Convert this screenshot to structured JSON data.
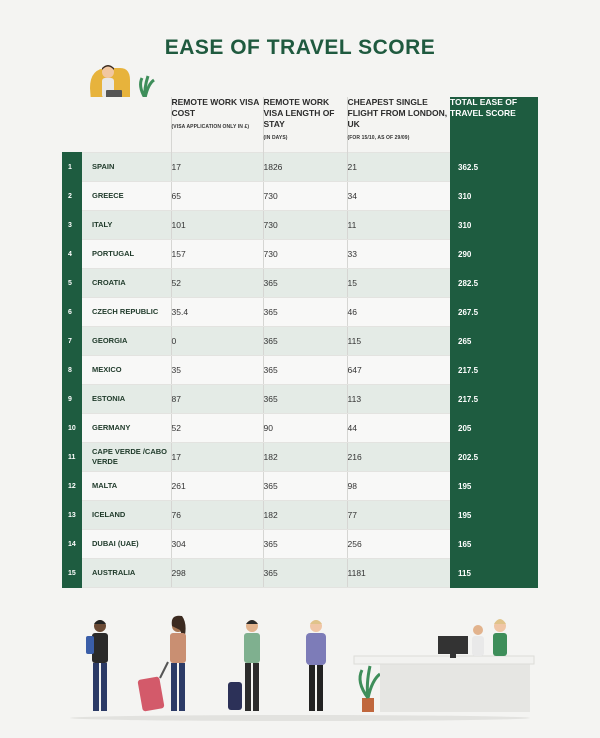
{
  "title": "EASE OF TRAVEL SCORE",
  "chart_data": {
    "type": "table",
    "columns": [
      {
        "label": "REMOTE WORK VISA COST",
        "note": "(VISA APPLICATION ONLY IN £)"
      },
      {
        "label": "REMOTE WORK VISA LENGTH OF STAY",
        "note": "(IN DAYS)"
      },
      {
        "label": "CHEAPEST SINGLE FLIGHT FROM LONDON, UK",
        "note": "(FOR 15/10, AS OF 29/09)"
      },
      {
        "label": "TOTAL EASE OF TRAVEL SCORE",
        "note": ""
      }
    ],
    "rows": [
      {
        "rank": "1",
        "country": "SPAIN",
        "cost": "17",
        "length": "1826",
        "flight": "21",
        "total": "362.5"
      },
      {
        "rank": "2",
        "country": "GREECE",
        "cost": "65",
        "length": "730",
        "flight": "34",
        "total": "310"
      },
      {
        "rank": "3",
        "country": "ITALY",
        "cost": "101",
        "length": "730",
        "flight": "11",
        "total": "310"
      },
      {
        "rank": "4",
        "country": "PORTUGAL",
        "cost": "157",
        "length": "730",
        "flight": "33",
        "total": "290"
      },
      {
        "rank": "5",
        "country": "CROATIA",
        "cost": "52",
        "length": "365",
        "flight": "15",
        "total": "282.5"
      },
      {
        "rank": "6",
        "country": "CZECH REPUBLIC",
        "cost": "35.4",
        "length": "365",
        "flight": "46",
        "total": "267.5"
      },
      {
        "rank": "7",
        "country": "GEORGIA",
        "cost": "0",
        "length": "365",
        "flight": "115",
        "total": "265"
      },
      {
        "rank": "8",
        "country": "MEXICO",
        "cost": "35",
        "length": "365",
        "flight": "647",
        "total": "217.5"
      },
      {
        "rank": "9",
        "country": "ESTONIA",
        "cost": "87",
        "length": "365",
        "flight": "113",
        "total": "217.5"
      },
      {
        "rank": "10",
        "country": "GERMANY",
        "cost": "52",
        "length": "90",
        "flight": "44",
        "total": "205"
      },
      {
        "rank": "11",
        "country": "CAPE VERDE /CABO VERDE",
        "cost": "17",
        "length": "182",
        "flight": "216",
        "total": "202.5"
      },
      {
        "rank": "12",
        "country": "MALTA",
        "cost": "261",
        "length": "365",
        "flight": "98",
        "total": "195"
      },
      {
        "rank": "13",
        "country": "ICELAND",
        "cost": "76",
        "length": "182",
        "flight": "77",
        "total": "195"
      },
      {
        "rank": "14",
        "country": "DUBAI (UAE)",
        "cost": "304",
        "length": "365",
        "flight": "256",
        "total": "165"
      },
      {
        "rank": "15",
        "country": "AUSTRALIA",
        "cost": "298",
        "length": "365",
        "flight": "1181",
        "total": "115"
      }
    ]
  },
  "colors": {
    "brand_green": "#1e5c40",
    "title_green": "#1f5a3f",
    "row_tint": "#e4ebe6",
    "background": "#f4f4f2"
  },
  "illustrations": [
    "person-in-armchair-with-laptop",
    "potted-plant-icon",
    "travelers-with-luggage",
    "check-in-desk-with-staff"
  ]
}
